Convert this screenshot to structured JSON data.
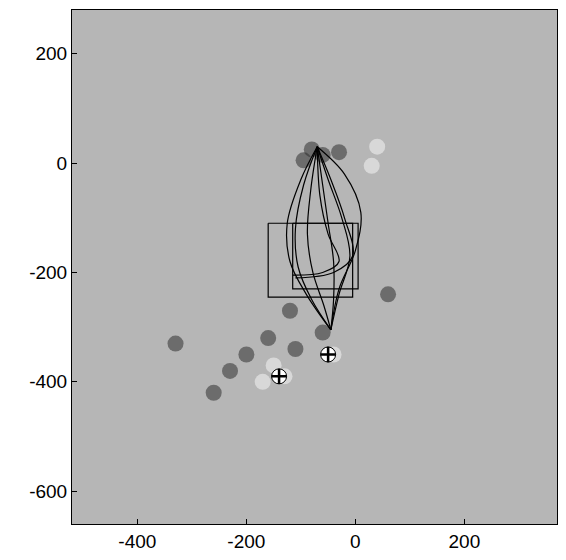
{
  "chart_data": {
    "type": "scatter",
    "xlim": [
      -520,
      370
    ],
    "ylim": [
      -660,
      280
    ],
    "xticks": [
      -400,
      -200,
      0,
      200
    ],
    "yticks": [
      200,
      0,
      -200,
      -400,
      -600
    ],
    "grid": false,
    "series": [
      {
        "type": "scatter",
        "marker": "circle",
        "color": "#303030",
        "x": [
          -80,
          -60,
          -95,
          -30,
          -200,
          -230,
          -160,
          -110,
          -260,
          -60,
          -120,
          60,
          -330
        ],
        "values": [
          25,
          15,
          5,
          20,
          -350,
          -380,
          -320,
          -340,
          -420,
          -310,
          -270,
          -240,
          -330
        ]
      },
      {
        "type": "scatter",
        "marker": "circle",
        "color": "#f4f4f4",
        "x": [
          40,
          -150,
          -130,
          -170,
          -40,
          30
        ],
        "values": [
          30,
          -370,
          -390,
          -400,
          -350,
          -5
        ]
      },
      {
        "type": "line",
        "color": "#000000",
        "x": [
          -70,
          -95,
          -110,
          -105,
          -80,
          -45
        ],
        "values": [
          30,
          -40,
          -120,
          -190,
          -250,
          -305
        ]
      },
      {
        "type": "line",
        "color": "#000000",
        "x": [
          -70,
          -82,
          -88,
          -78,
          -58,
          -45
        ],
        "values": [
          30,
          -50,
          -130,
          -200,
          -260,
          -305
        ]
      },
      {
        "type": "line",
        "color": "#000000",
        "x": [
          -70,
          -60,
          -50,
          -40,
          -40,
          -45
        ],
        "values": [
          30,
          -40,
          -110,
          -180,
          -250,
          -305
        ]
      },
      {
        "type": "line",
        "color": "#000000",
        "x": [
          -70,
          -50,
          -25,
          -10,
          -30,
          -45
        ],
        "values": [
          30,
          -30,
          -100,
          -170,
          -240,
          -305
        ]
      },
      {
        "type": "line",
        "color": "#000000",
        "x": [
          -70,
          -65,
          -50,
          -30,
          -60,
          -115
        ],
        "values": [
          30,
          -60,
          -130,
          -180,
          -200,
          -205
        ]
      },
      {
        "type": "line",
        "color": "#000000",
        "x": [
          -70,
          -45,
          -20,
          -5,
          -40,
          -110
        ],
        "values": [
          30,
          -30,
          -100,
          -170,
          -200,
          -210
        ]
      },
      {
        "type": "line",
        "color": "#000000",
        "x": [
          -70,
          -20,
          10,
          0,
          -30,
          -45
        ],
        "values": [
          30,
          -20,
          -90,
          -160,
          -230,
          -305
        ]
      },
      {
        "type": "line",
        "color": "#000000",
        "x": [
          -70,
          -100,
          -125,
          -120,
          -90,
          -45
        ],
        "values": [
          30,
          -30,
          -110,
          -180,
          -240,
          -305
        ]
      },
      {
        "type": "line",
        "color": "#000000",
        "x": [
          -160,
          -5,
          -5,
          -160,
          -160
        ],
        "values": [
          -110,
          -110,
          -245,
          -245,
          -110
        ]
      },
      {
        "type": "line",
        "color": "#000000",
        "x": [
          -115,
          5,
          5,
          -115,
          -115
        ],
        "values": [
          -110,
          -110,
          -230,
          -230,
          -110
        ]
      },
      {
        "type": "scatter",
        "marker": "cross",
        "color": "#000000",
        "x": [
          -140,
          -50
        ],
        "values": [
          -390,
          -350
        ]
      }
    ]
  }
}
